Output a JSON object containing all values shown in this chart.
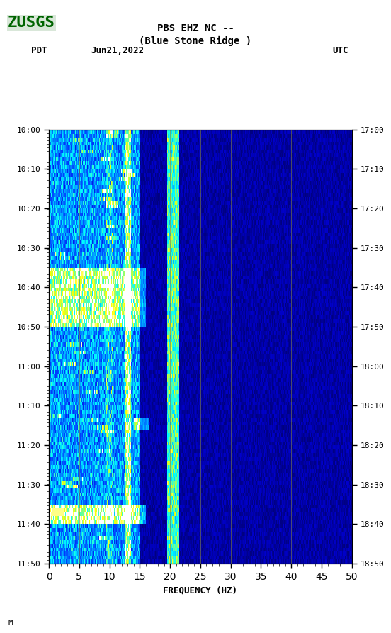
{
  "title_line1": "PBS EHZ NC --",
  "title_line2": "(Blue Stone Ridge )",
  "left_label": "PDT",
  "date_label": "Jun21,2022",
  "right_label": "UTC",
  "left_times": [
    "10:00",
    "10:10",
    "10:20",
    "10:30",
    "10:40",
    "10:50",
    "11:00",
    "11:10",
    "11:20",
    "11:30",
    "11:40",
    "11:50"
  ],
  "right_times": [
    "17:00",
    "17:10",
    "17:20",
    "17:30",
    "17:40",
    "17:50",
    "18:00",
    "18:10",
    "18:20",
    "18:30",
    "18:40",
    "18:50"
  ],
  "freq_min": 0,
  "freq_max": 50,
  "freq_ticks": [
    0,
    5,
    10,
    15,
    20,
    25,
    30,
    35,
    40,
    45,
    50
  ],
  "xlabel": "FREQUENCY (HZ)",
  "fig_width": 5.52,
  "fig_height": 8.93,
  "background_color": "#ffffff",
  "plot_bg_color": "#000080",
  "vertical_lines_freq": [
    5,
    10,
    15,
    20,
    25,
    30,
    35,
    40,
    45
  ],
  "vertical_line_color": "#808040",
  "n_time_steps": 110,
  "n_freq_steps": 500
}
